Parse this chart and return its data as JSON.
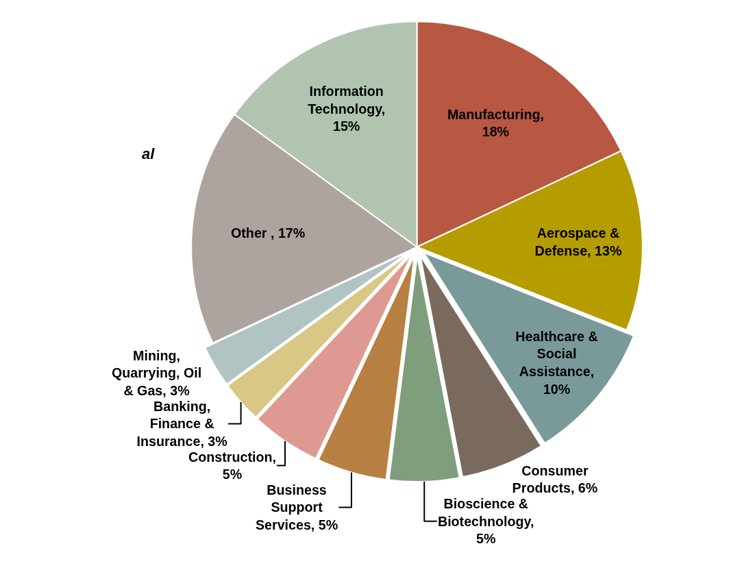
{
  "chart_data": {
    "type": "pie",
    "categories": [
      "Manufacturing",
      "Aerospace & Defense",
      "Healthcare & Social Assistance",
      "Consumer Products",
      "Bioscience & Biotechnology",
      "Business Support Services",
      "Construction",
      "Banking, Finance & Insurance",
      "Mining, Quarrying, Oil & Gas",
      "Other",
      "Information Technology"
    ],
    "values": [
      18,
      13,
      10,
      6,
      5,
      5,
      5,
      3,
      3,
      17,
      15
    ],
    "colors": [
      "#b85842",
      "#b59d00",
      "#7a9a9a",
      "#7a6a5e",
      "#7f9e7c",
      "#b87f42",
      "#de9a92",
      "#d9c785",
      "#b0c4c4",
      "#aea49f",
      "#b0c4b0"
    ],
    "value_labels": [
      ", 18%",
      ", 13%",
      ", 10%",
      ", 6%",
      ", 5%",
      ", 5%",
      ", 5%",
      ", 3%",
      ", 3%",
      " , 17%",
      ", 15%"
    ],
    "annotations": [
      "al"
    ]
  }
}
